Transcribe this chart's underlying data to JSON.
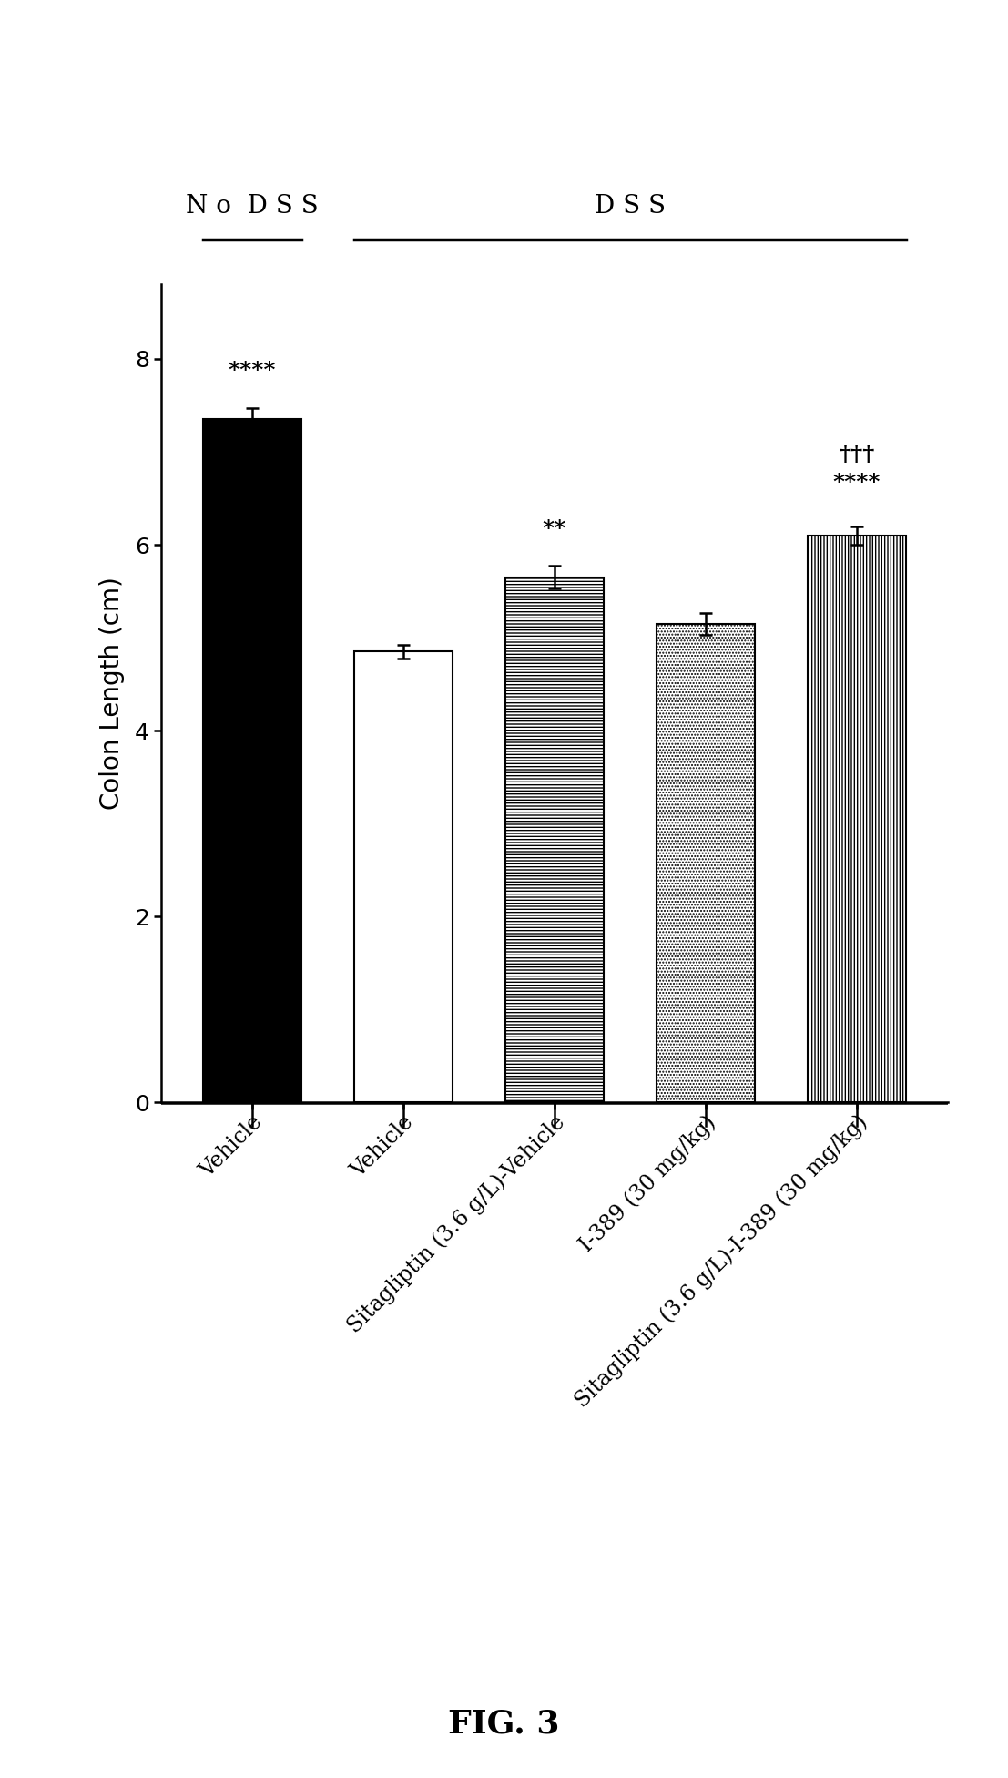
{
  "categories": [
    "Vehicle",
    "Vehicle",
    "Sitagliptin (3.6 g/L)-Vehicle",
    "I-389 (30 mg/kg)",
    "Sitagliptin (3.6 g/L)-I-389 (30 mg/kg)"
  ],
  "values": [
    7.35,
    4.85,
    5.65,
    5.15,
    6.1
  ],
  "errors": [
    0.12,
    0.07,
    0.12,
    0.12,
    0.1
  ],
  "ylabel": "Colon Length (cm)",
  "ylim": [
    0,
    8.8
  ],
  "yticks": [
    0,
    2,
    4,
    6,
    8
  ],
  "annotations_star": [
    {
      "bar_idx": 0,
      "text": "****",
      "y": 7.75
    },
    {
      "bar_idx": 2,
      "text": "**",
      "y": 6.05
    },
    {
      "bar_idx": 4,
      "text": "****",
      "y": 6.55
    }
  ],
  "annotations_dagger": [
    {
      "bar_idx": 4,
      "text": "†††",
      "y": 6.85
    }
  ],
  "figure_label": "FIG. 3",
  "bar_facecolors": [
    "black",
    "white",
    "white",
    "white",
    "white"
  ],
  "bar_hatches": [
    "",
    "",
    "-----",
    ".....",
    "|||||"
  ],
  "bar_edgecolor": "black",
  "background_color": "white",
  "label_fontsize": 20,
  "tick_fontsize": 18,
  "annot_fontsize": 18,
  "xlabel_fontsize": 17,
  "bar_width": 0.65,
  "no_dss_label": "N o  D S S",
  "dss_label": "D S S"
}
